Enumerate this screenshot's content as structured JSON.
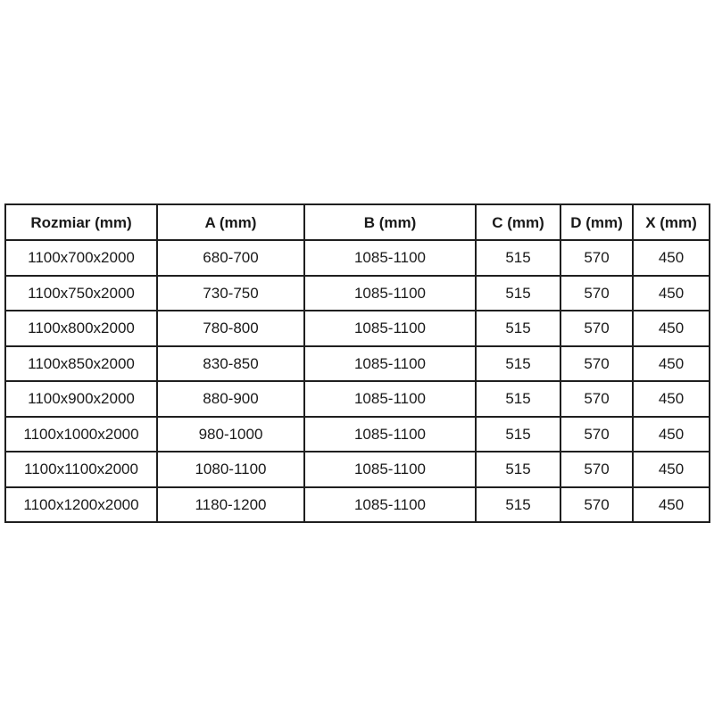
{
  "page": {
    "background_color": "#ffffff",
    "table_border_color": "#1f1f1f",
    "text_color": "#1a1a1a"
  },
  "table": {
    "columns": [
      "Rozmiar (mm)",
      "A (mm)",
      "B (mm)",
      "C (mm)",
      "D (mm)",
      "X (mm)"
    ],
    "rows": [
      [
        "1100x700x2000",
        "680-700",
        "1085-1100",
        "515",
        "570",
        "450"
      ],
      [
        "1100x750x2000",
        "730-750",
        "1085-1100",
        "515",
        "570",
        "450"
      ],
      [
        "1100x800x2000",
        "780-800",
        "1085-1100",
        "515",
        "570",
        "450"
      ],
      [
        "1100x850x2000",
        "830-850",
        "1085-1100",
        "515",
        "570",
        "450"
      ],
      [
        "1100x900x2000",
        "880-900",
        "1085-1100",
        "515",
        "570",
        "450"
      ],
      [
        "1100x1000x2000",
        "980-1000",
        "1085-1100",
        "515",
        "570",
        "450"
      ],
      [
        "1100x1100x2000",
        "1080-1100",
        "1085-1100",
        "515",
        "570",
        "450"
      ],
      [
        "1100x1200x2000",
        "1180-1200",
        "1085-1100",
        "515",
        "570",
        "450"
      ]
    ]
  }
}
